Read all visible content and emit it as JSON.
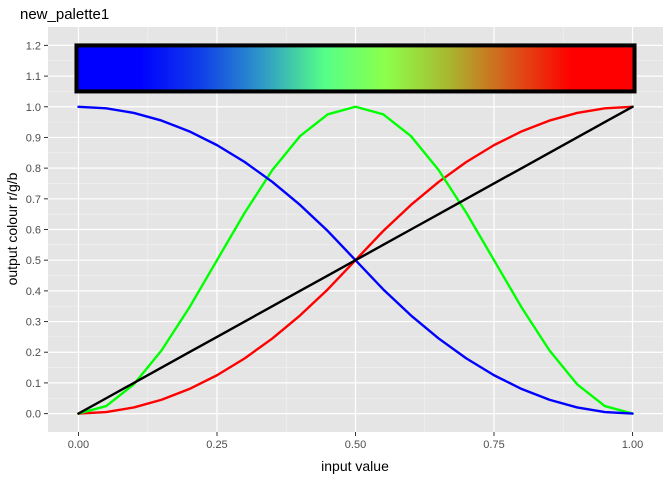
{
  "chart_data": {
    "type": "line",
    "title": "new_palette1",
    "xlabel": "input value",
    "ylabel": "output colour r/g/b",
    "xlim": [
      -0.055,
      1.055
    ],
    "ylim": [
      -0.06,
      1.26
    ],
    "x_ticks": [
      0,
      0.25,
      0.5,
      0.75,
      1
    ],
    "x_tick_labels": [
      "0.00",
      "0.25",
      "0.50",
      "0.75",
      "1.00"
    ],
    "y_ticks": [
      0,
      0.1,
      0.2,
      0.3,
      0.4,
      0.5,
      0.6,
      0.7,
      0.8,
      0.9,
      1.0,
      1.1,
      1.2
    ],
    "y_tick_labels": [
      "0.0",
      "0.1",
      "0.2",
      "0.3",
      "0.4",
      "0.5",
      "0.6",
      "0.7",
      "0.8",
      "0.9",
      "1.0",
      "1.1",
      "1.2"
    ],
    "grid": true,
    "background": "#e5e5e5",
    "x": [
      0,
      0.05,
      0.1,
      0.15,
      0.2,
      0.25,
      0.3,
      0.35,
      0.4,
      0.45,
      0.5,
      0.55,
      0.6,
      0.65,
      0.7,
      0.75,
      0.8,
      0.85,
      0.9,
      0.95,
      1
    ],
    "series": [
      {
        "color": "#ff0000",
        "values": [
          0,
          0.005,
          0.02,
          0.045,
          0.08,
          0.125,
          0.18,
          0.245,
          0.32,
          0.405,
          0.5,
          0.595,
          0.68,
          0.755,
          0.82,
          0.875,
          0.92,
          0.955,
          0.98,
          0.995,
          1
        ]
      },
      {
        "color": "#00ff00",
        "values": [
          0,
          0.0245,
          0.0955,
          0.2061,
          0.3455,
          0.5,
          0.6545,
          0.7939,
          0.9045,
          0.9755,
          1,
          0.9755,
          0.9045,
          0.7939,
          0.6545,
          0.5,
          0.3455,
          0.2061,
          0.0955,
          0.0245,
          0
        ]
      },
      {
        "color": "#0000ff",
        "values": [
          1,
          0.995,
          0.98,
          0.955,
          0.92,
          0.875,
          0.82,
          0.755,
          0.68,
          0.595,
          0.5,
          0.405,
          0.32,
          0.245,
          0.18,
          0.125,
          0.08,
          0.045,
          0.02,
          0.005,
          0
        ]
      },
      {
        "color": "#000000",
        "values": [
          0,
          0.05,
          0.1,
          0.15,
          0.2,
          0.25,
          0.3,
          0.35,
          0.4,
          0.45,
          0.5,
          0.55,
          0.6,
          0.65,
          0.7,
          0.75,
          0.8,
          0.85,
          0.9,
          0.95,
          1
        ]
      }
    ],
    "colorbar": {
      "x_range": [
        0,
        1
      ],
      "y_range": [
        1.05,
        1.2
      ],
      "stops": [
        "#0000ff",
        "#0000ff",
        "#1040e8",
        "#2f9ac6",
        "#55ff88",
        "#8cff4a",
        "#a8b830",
        "#d85a1a",
        "#ff0000",
        "#ff0000"
      ],
      "border": "#000000"
    }
  }
}
